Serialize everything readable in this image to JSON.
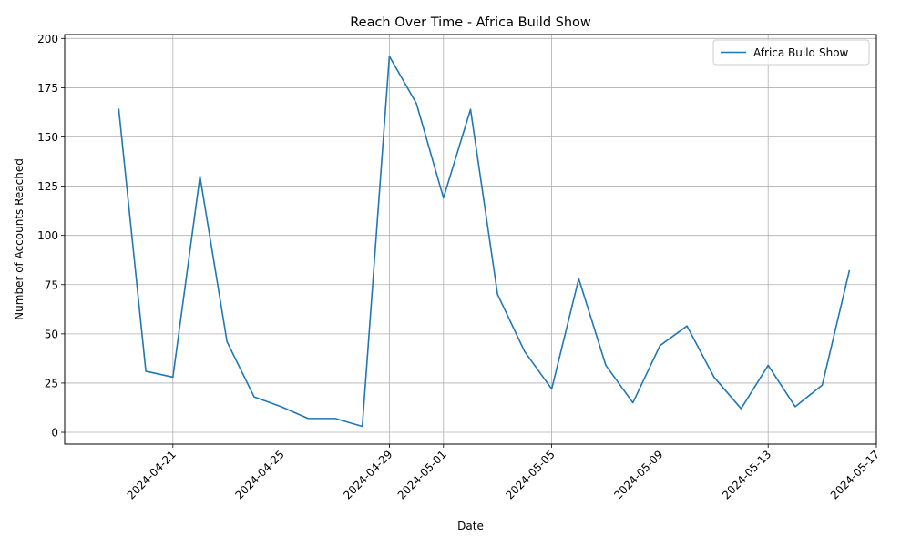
{
  "chart_data": {
    "type": "line",
    "title": "Reach Over Time - Africa Build Show",
    "xlabel": "Date",
    "ylabel": "Number of Accounts Reached",
    "grid": true,
    "legend_position": "top-right",
    "x_axis_type": "date",
    "xlim": [
      "2024-04-17",
      "2024-05-17"
    ],
    "ylim": [
      -6,
      202
    ],
    "x_ticks": [
      "2024-04-21",
      "2024-04-25",
      "2024-04-29",
      "2024-05-01",
      "2024-05-05",
      "2024-05-09",
      "2024-05-13",
      "2024-05-17"
    ],
    "y_ticks": [
      0,
      25,
      50,
      75,
      100,
      125,
      150,
      175,
      200
    ],
    "series": [
      {
        "name": "Africa Build Show",
        "color": "#1f77b4",
        "x": [
          "2024-04-19",
          "2024-04-20",
          "2024-04-21",
          "2024-04-22",
          "2024-04-23",
          "2024-04-24",
          "2024-04-25",
          "2024-04-26",
          "2024-04-27",
          "2024-04-28",
          "2024-04-29",
          "2024-04-30",
          "2024-05-01",
          "2024-05-02",
          "2024-05-03",
          "2024-05-04",
          "2024-05-05",
          "2024-05-06",
          "2024-05-07",
          "2024-05-08",
          "2024-05-09",
          "2024-05-10",
          "2024-05-11",
          "2024-05-12",
          "2024-05-13",
          "2024-05-14",
          "2024-05-15",
          "2024-05-16"
        ],
        "values": [
          164,
          31,
          28,
          130,
          46,
          18,
          13,
          7,
          7,
          3,
          191,
          167,
          119,
          164,
          70,
          41,
          22,
          78,
          34,
          15,
          44,
          54,
          28,
          12,
          34,
          13,
          24,
          82
        ]
      }
    ]
  }
}
